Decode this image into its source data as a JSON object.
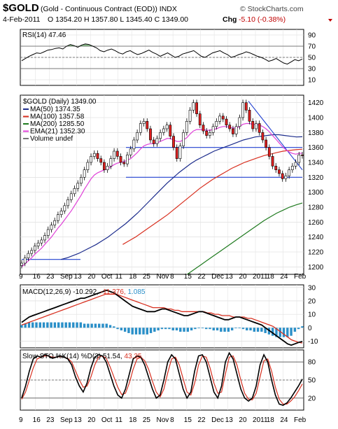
{
  "header": {
    "symbol": "$GOLD",
    "description": "(Gold - Continuous Contract (EOD)) INDX",
    "brand": "© StockCharts.com",
    "date": "4-Feb-2011",
    "ohlc": "O 1354.20  H 1357.80  L 1345.40  C 1349.00",
    "chg_label": "Chg",
    "chg_value": "-5.10 (-0.38%)",
    "chg_color": "#c00000"
  },
  "rsi_panel": {
    "legend": "RSI(14) 47.46",
    "ticks": [
      "90",
      "70",
      "50",
      "30",
      "10"
    ]
  },
  "price_panel": {
    "title": "$GOLD (Daily) 1349.00",
    "legend": [
      {
        "label": "MA(50) 1374.35",
        "color": "#1c2c8c"
      },
      {
        "label": "MA(100) 1357.58",
        "color": "#d83020"
      },
      {
        "label": "MA(200) 1285.50",
        "color": "#1e7a1e"
      },
      {
        "label": "EMA(21) 1352.30",
        "color": "#e040d8"
      },
      {
        "label": "Volume undef",
        "color": "#777777"
      }
    ],
    "ticks": [
      "1420",
      "1400",
      "1380",
      "1360",
      "1340",
      "1320",
      "1300",
      "1280",
      "1260",
      "1240",
      "1220",
      "1200"
    ]
  },
  "macd_panel": {
    "legend_prefix": "MACD(12,26,9)",
    "macd": "-10.292,",
    "signal": "-11.376,",
    "hist": "1.085",
    "signal_color": "#d83020",
    "hist_color": "#2a8fc8",
    "ticks": [
      "30",
      "20",
      "10",
      "0",
      "-10"
    ]
  },
  "sto_panel": {
    "legend_prefix": "Slow STO %K(14) %D(3)",
    "k": "51.54,",
    "d": "43.35",
    "d_color": "#d83020",
    "ticks": [
      "80",
      "50",
      "20"
    ]
  },
  "x_axis": {
    "labels": [
      "9",
      "16",
      "23",
      "Sep",
      "13",
      "20",
      "Oct",
      "11",
      "18",
      "25",
      "Nov",
      "8",
      "15",
      "22",
      "Dec",
      "13",
      "20",
      "2011",
      "18",
      "24",
      "Feb"
    ]
  },
  "chart_data": [
    {
      "type": "line",
      "name": "RSI(14)",
      "ylim": [
        0,
        100
      ],
      "reference_lines": [
        70,
        50,
        30
      ],
      "y": [
        44,
        48,
        52,
        55,
        58,
        57,
        60,
        63,
        64,
        66,
        67,
        65,
        70,
        73,
        71,
        68,
        72,
        74,
        73,
        70,
        67,
        62,
        60,
        63,
        65,
        62,
        58,
        56,
        60,
        62,
        58,
        55,
        57,
        60,
        63,
        59,
        56,
        52,
        55,
        58,
        54,
        50,
        52,
        56,
        58,
        60,
        62,
        57,
        52,
        50,
        54,
        58,
        60,
        62,
        58,
        55,
        50,
        52,
        55,
        57,
        60,
        58,
        55,
        52,
        50,
        47,
        43,
        45,
        48,
        44,
        40,
        38,
        42,
        46,
        44,
        47
      ]
    },
    {
      "type": "line",
      "title": "$GOLD (Daily) 1349.00",
      "ylim": [
        1190,
        1430
      ],
      "close": [
        1205,
        1212,
        1218,
        1222,
        1228,
        1232,
        1236,
        1242,
        1250,
        1256,
        1262,
        1270,
        1275,
        1282,
        1290,
        1298,
        1305,
        1312,
        1320,
        1330,
        1340,
        1348,
        1352,
        1345,
        1340,
        1330,
        1335,
        1345,
        1355,
        1348,
        1340,
        1338,
        1350,
        1358,
        1370,
        1380,
        1392,
        1395,
        1385,
        1370,
        1365,
        1372,
        1380,
        1385,
        1390,
        1375,
        1360,
        1345,
        1362,
        1380,
        1395,
        1410,
        1420,
        1405,
        1390,
        1382,
        1376,
        1380,
        1388,
        1395,
        1402,
        1398,
        1390,
        1385,
        1378,
        1388,
        1400,
        1420,
        1410,
        1395,
        1385,
        1392,
        1380,
        1370,
        1360,
        1348,
        1335,
        1330,
        1325,
        1318,
        1322,
        1330,
        1335,
        1340,
        1350,
        1349
      ],
      "ema21": [
        1200,
        1204,
        1208,
        1212,
        1217,
        1221,
        1225,
        1230,
        1235,
        1240,
        1246,
        1252,
        1257,
        1263,
        1269,
        1275,
        1282,
        1289,
        1296,
        1304,
        1311,
        1318,
        1323,
        1326,
        1328,
        1330,
        1331,
        1334,
        1337,
        1339,
        1340,
        1341,
        1343,
        1345,
        1349,
        1353,
        1358,
        1362,
        1364,
        1365,
        1365,
        1366,
        1368,
        1370,
        1372,
        1372,
        1370,
        1368,
        1368,
        1370,
        1373,
        1378,
        1382,
        1384,
        1384,
        1384,
        1383,
        1383,
        1384,
        1385,
        1387,
        1388,
        1388,
        1387,
        1386,
        1386,
        1388,
        1391,
        1392,
        1392,
        1391,
        1391,
        1390,
        1388,
        1385,
        1381,
        1376,
        1371,
        1366,
        1361,
        1357,
        1354,
        1352,
        1351,
        1352,
        1352.3
      ],
      "series": [
        {
          "name": "MA(50)",
          "values": [
            1210,
            1212,
            1215,
            1218,
            1222,
            1226,
            1230,
            1235,
            1240,
            1246,
            1252,
            1258,
            1265,
            1272,
            1280,
            1288,
            1296,
            1304,
            1312,
            1319,
            1326,
            1332,
            1338,
            1343,
            1347,
            1351,
            1355,
            1358,
            1361,
            1364,
            1367,
            1370,
            1372,
            1374,
            1375,
            1376,
            1377,
            1377,
            1376,
            1375,
            1374,
            1374.35
          ]
        },
        {
          "name": "MA(100)",
          "values": [
            1230,
            1235,
            1240,
            1246,
            1252,
            1258,
            1264,
            1270,
            1277,
            1284,
            1291,
            1298,
            1305,
            1311,
            1317,
            1322,
            1327,
            1332,
            1336,
            1340,
            1343,
            1346,
            1349,
            1351,
            1353,
            1355,
            1356,
            1357,
            1357.58
          ]
        },
        {
          "name": "MA(200)",
          "values": [
            1190,
            1196,
            1202,
            1208,
            1214,
            1220,
            1226,
            1232,
            1238,
            1244,
            1250,
            1256,
            1262,
            1267,
            1272,
            1276,
            1280,
            1283,
            1285.5
          ]
        }
      ],
      "support_lines": [
        1360,
        1320,
        1210
      ],
      "trend_line": [
        1422,
        1330
      ]
    },
    {
      "type": "line",
      "name": "MACD(12,26,9)",
      "ylim": [
        -15,
        32
      ],
      "macd": [
        4,
        6,
        8,
        9,
        10,
        11,
        12,
        13,
        14,
        15,
        16,
        17,
        18,
        19,
        20,
        21,
        22,
        22,
        23,
        24,
        25,
        26,
        27,
        28,
        27,
        26,
        24,
        22,
        20,
        18,
        16,
        15,
        14,
        13,
        12,
        12,
        12,
        13,
        14,
        14,
        13,
        12,
        11,
        10,
        9,
        9,
        10,
        11,
        12,
        12,
        11,
        10,
        9,
        8,
        7,
        6,
        6,
        7,
        8,
        8,
        7,
        6,
        5,
        4,
        3,
        2,
        0,
        -2,
        -4,
        -6,
        -8,
        -10,
        -12,
        -13,
        -12,
        -11,
        -10.292
      ],
      "signal": [
        2,
        3,
        4,
        5,
        6,
        7,
        8,
        9,
        10,
        11,
        12,
        13,
        14,
        15,
        16,
        17,
        18,
        19,
        20,
        21,
        22,
        23,
        24,
        25,
        25,
        25,
        25,
        24,
        23,
        22,
        21,
        20,
        19,
        18,
        17,
        16,
        15,
        15,
        15,
        15,
        14,
        14,
        13,
        13,
        12,
        12,
        12,
        12,
        12,
        12,
        12,
        11,
        11,
        10,
        10,
        9,
        9,
        9,
        8,
        8,
        8,
        8,
        7,
        7,
        6,
        5,
        4,
        3,
        2,
        1,
        -1,
        -3,
        -5,
        -7,
        -9,
        -10,
        -11,
        -11.376
      ],
      "hist": [
        2,
        3,
        4,
        4,
        4,
        4,
        4,
        4,
        4,
        4,
        4,
        4,
        4,
        4,
        4,
        4,
        4,
        3,
        3,
        3,
        3,
        3,
        3,
        3,
        2,
        1,
        -1,
        -2,
        -3,
        -4,
        -5,
        -5,
        -5,
        -5,
        -5,
        -4,
        -3,
        -2,
        -1,
        -1,
        -1,
        -2,
        -2,
        -3,
        -3,
        -3,
        -2,
        -1,
        0,
        0,
        -1,
        -1,
        -2,
        -2,
        -3,
        -3,
        -3,
        -2,
        0,
        0,
        -1,
        -2,
        -2,
        -3,
        -3,
        -3,
        -4,
        -5,
        -6,
        -7,
        -7,
        -7,
        -7,
        -6,
        -3,
        -1,
        1.085
      ]
    },
    {
      "type": "line",
      "name": "Slow STO %K(14) %D(3)",
      "ylim": [
        0,
        100
      ],
      "reference_lines": [
        80,
        50,
        20
      ],
      "k": [
        20,
        40,
        65,
        85,
        90,
        88,
        92,
        90,
        86,
        88,
        90,
        88,
        85,
        75,
        55,
        40,
        30,
        45,
        70,
        88,
        92,
        90,
        80,
        60,
        40,
        25,
        20,
        35,
        60,
        85,
        90,
        88,
        75,
        55,
        35,
        20,
        25,
        50,
        80,
        92,
        85,
        60,
        35,
        20,
        30,
        65,
        90,
        92,
        80,
        55,
        30,
        20,
        40,
        80,
        95,
        85,
        60,
        35,
        20,
        15,
        20,
        40,
        75,
        92,
        80,
        50,
        25,
        10,
        8,
        12,
        20,
        30,
        40,
        51.54
      ],
      "d": [
        18,
        30,
        50,
        70,
        85,
        88,
        90,
        90,
        88,
        88,
        89,
        88,
        86,
        80,
        65,
        50,
        38,
        40,
        55,
        75,
        88,
        90,
        86,
        72,
        55,
        38,
        26,
        28,
        45,
        68,
        85,
        88,
        82,
        68,
        48,
        30,
        22,
        35,
        62,
        85,
        88,
        75,
        52,
        30,
        25,
        45,
        75,
        90,
        88,
        70,
        45,
        28,
        30,
        60,
        88,
        90,
        75,
        50,
        28,
        18,
        17,
        28,
        55,
        82,
        85,
        65,
        38,
        18,
        10,
        10,
        15,
        22,
        32,
        43.35
      ]
    }
  ]
}
